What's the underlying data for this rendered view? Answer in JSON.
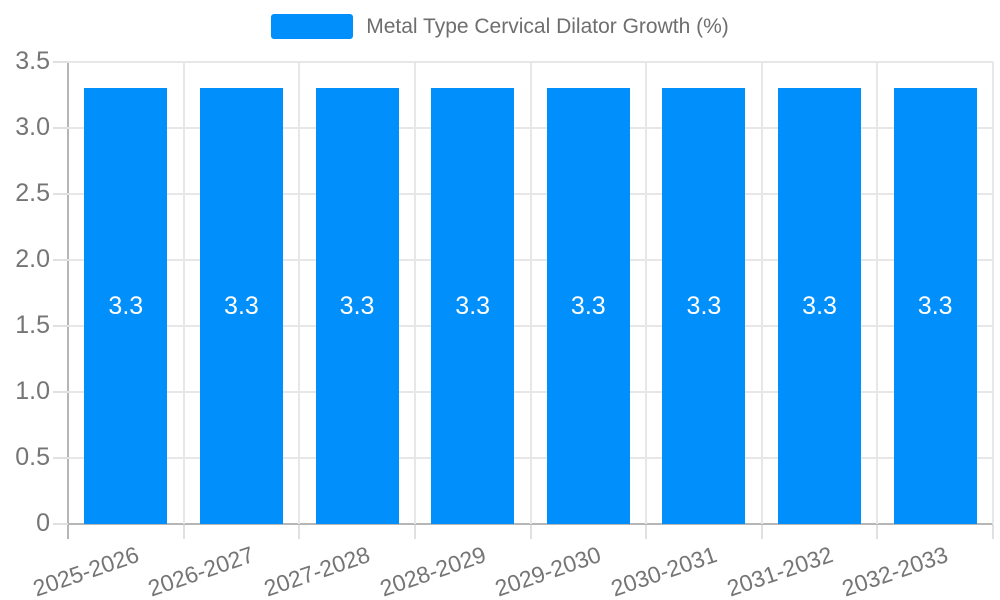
{
  "legend": {
    "series_label": "Metal Type Cervical Dilator Growth (%)"
  },
  "chart_data": {
    "type": "bar",
    "title": "Metal Type Cervical Dilator Growth (%)",
    "xlabel": "",
    "ylabel": "",
    "categories": [
      "2025-2026",
      "2026-2027",
      "2027-2028",
      "2028-2029",
      "2029-2030",
      "2030-2031",
      "2031-2032",
      "2032-2033"
    ],
    "values": [
      3.3,
      3.3,
      3.3,
      3.3,
      3.3,
      3.3,
      3.3,
      3.3
    ],
    "value_labels": [
      "3.3",
      "3.3",
      "3.3",
      "3.3",
      "3.3",
      "3.3",
      "3.3",
      "3.3"
    ],
    "ylim": [
      0,
      3.5
    ],
    "ytick_values": [
      3.5,
      3.0,
      2.5,
      2.0,
      1.5,
      1.0,
      0.5,
      0
    ],
    "ytick_labels": [
      "3.5",
      "3.0",
      "2.5",
      "2.0",
      "1.5",
      "1.0",
      "0.5",
      "0"
    ],
    "grid": true,
    "legend_position": "top",
    "colors": {
      "bar": "#008ffb",
      "bar_label": "#ffffff",
      "axis_label": "#757575",
      "title_text": "#6e6e6e",
      "gridline": "#e7e7e7",
      "tick": "#e0e0e0",
      "axis_line": "#b6b6b6",
      "background": "#ffffff"
    }
  }
}
